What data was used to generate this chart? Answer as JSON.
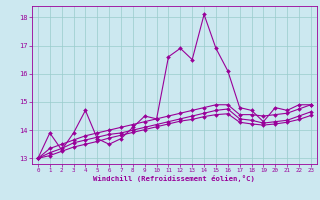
{
  "x": [
    0,
    1,
    2,
    3,
    4,
    5,
    6,
    7,
    8,
    9,
    10,
    11,
    12,
    13,
    14,
    15,
    16,
    17,
    18,
    19,
    20,
    21,
    22,
    23
  ],
  "line1": [
    13.0,
    13.9,
    13.3,
    13.9,
    14.7,
    13.7,
    13.5,
    13.7,
    14.1,
    14.5,
    14.4,
    16.6,
    16.9,
    16.5,
    18.1,
    16.9,
    16.1,
    14.8,
    14.7,
    14.3,
    14.8,
    14.7,
    14.9,
    14.9
  ],
  "line2": [
    13.0,
    13.35,
    13.5,
    13.65,
    13.8,
    13.9,
    14.0,
    14.1,
    14.2,
    14.3,
    14.4,
    14.5,
    14.6,
    14.7,
    14.8,
    14.9,
    14.9,
    14.55,
    14.55,
    14.5,
    14.55,
    14.6,
    14.75,
    14.9
  ],
  "line3": [
    13.0,
    13.2,
    13.35,
    13.55,
    13.65,
    13.75,
    13.85,
    13.9,
    14.0,
    14.1,
    14.2,
    14.3,
    14.4,
    14.5,
    14.6,
    14.7,
    14.75,
    14.4,
    14.35,
    14.25,
    14.3,
    14.35,
    14.5,
    14.65
  ],
  "line4": [
    13.0,
    13.1,
    13.25,
    13.4,
    13.5,
    13.6,
    13.72,
    13.82,
    13.92,
    14.02,
    14.12,
    14.22,
    14.32,
    14.38,
    14.48,
    14.55,
    14.58,
    14.28,
    14.22,
    14.18,
    14.22,
    14.28,
    14.38,
    14.52
  ],
  "color": "#990099",
  "bg_color": "#cce8f0",
  "grid_color": "#99cccc",
  "xlabel": "Windchill (Refroidissement éolien,°C)",
  "ylim": [
    12.8,
    18.4
  ],
  "xlim": [
    -0.5,
    23.5
  ],
  "yticks": [
    13,
    14,
    15,
    16,
    17,
    18
  ],
  "xticks": [
    0,
    1,
    2,
    3,
    4,
    5,
    6,
    7,
    8,
    9,
    10,
    11,
    12,
    13,
    14,
    15,
    16,
    17,
    18,
    19,
    20,
    21,
    22,
    23
  ]
}
